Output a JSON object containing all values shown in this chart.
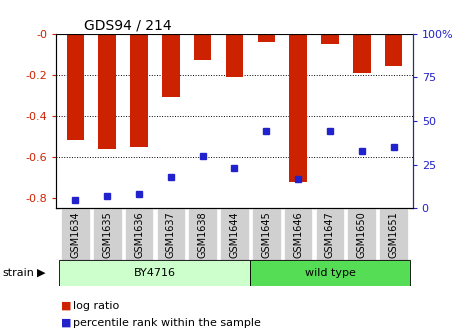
{
  "title": "GDS94 / 214",
  "samples": [
    "GSM1634",
    "GSM1635",
    "GSM1636",
    "GSM1637",
    "GSM1638",
    "GSM1644",
    "GSM1645",
    "GSM1646",
    "GSM1647",
    "GSM1650",
    "GSM1651"
  ],
  "log_ratios": [
    -0.52,
    -0.56,
    -0.55,
    -0.31,
    -0.13,
    -0.21,
    -0.04,
    -0.72,
    -0.05,
    -0.19,
    -0.16
  ],
  "percentile_ranks": [
    5,
    7,
    8,
    18,
    30,
    23,
    44,
    17,
    44,
    33,
    35
  ],
  "strain_groups": [
    {
      "label": "BY4716",
      "start": 0,
      "end": 5,
      "color": "#ccffcc"
    },
    {
      "label": "wild type",
      "start": 6,
      "end": 10,
      "color": "#55dd55"
    }
  ],
  "bar_color": "#cc2200",
  "percentile_color": "#2222cc",
  "ylim_left": [
    -0.85,
    0.0
  ],
  "ylim_right": [
    0,
    100
  ],
  "yticks_left": [
    0.0,
    -0.2,
    -0.4,
    -0.6,
    -0.8
  ],
  "ytick_labels_left": [
    "-0",
    "-0.2",
    "-0.4",
    "-0.6",
    "-0.8"
  ],
  "yticks_right": [
    0,
    25,
    50,
    75,
    100
  ],
  "ytick_labels_right": [
    "0",
    "25",
    "50",
    "75",
    "100%"
  ],
  "grid_values": [
    -0.2,
    -0.4,
    -0.6
  ],
  "bar_width": 0.55,
  "bg_color": "#ffffff",
  "tick_box_color": "#d0d0d0",
  "strain_label_fontsize": 8,
  "legend_fontsize": 8
}
